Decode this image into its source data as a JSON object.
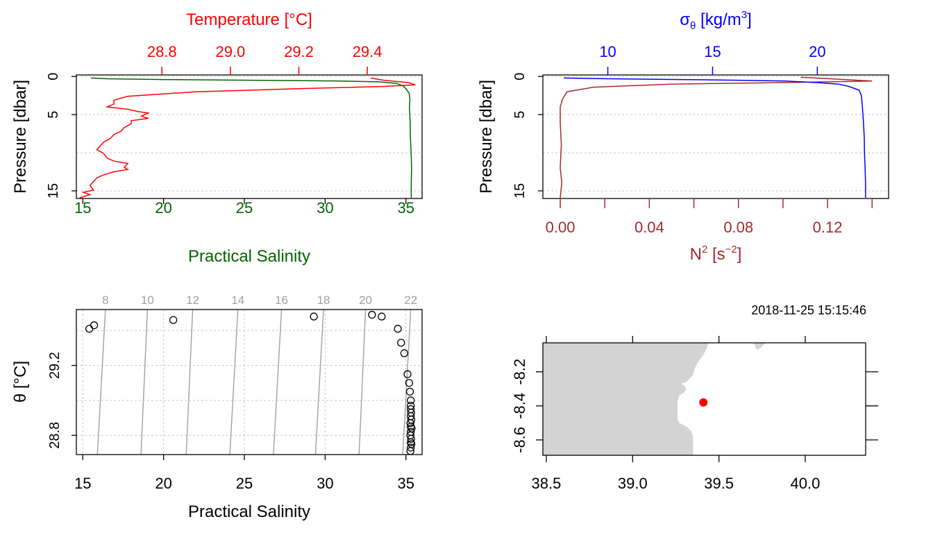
{
  "colors": {
    "temperature": "#ff0000",
    "salinity": "#006400",
    "sigma_theta": "#0000ff",
    "n2": "#a52a2a",
    "isopycnal": "#a0a0a0",
    "land": "#d3d3d3",
    "station": "#ff0000"
  },
  "chart_data": [
    {
      "id": "profile-ts",
      "type": "line",
      "ylabel": "Pressure [dbar]",
      "ylim": [
        16,
        -0.2
      ],
      "yticks": [
        0,
        5,
        15
      ],
      "y_grid": [
        0,
        5,
        10,
        15
      ],
      "bottom_axis": {
        "label": "Practical Salinity",
        "ticks": [
          "15",
          "20",
          "25",
          "30",
          "35"
        ],
        "tick_values": [
          15,
          20,
          25,
          30,
          35
        ],
        "lim": [
          14.6,
          36.0
        ]
      },
      "top_axis": {
        "label": "Temperature [°C]",
        "ticks": [
          "28.8",
          "29.0",
          "29.2",
          "29.4"
        ],
        "tick_values": [
          28.8,
          29.0,
          29.2,
          29.4
        ],
        "lim": [
          28.55,
          29.56
        ]
      },
      "series": [
        {
          "name": "Temperature",
          "axis": "top",
          "values": [
            [
              29.41,
              0.2
            ],
            [
              29.45,
              0.5
            ],
            [
              29.52,
              0.8
            ],
            [
              29.54,
              1.1
            ],
            [
              29.45,
              1.3
            ],
            [
              29.2,
              1.6
            ],
            [
              28.9,
              2.0
            ],
            [
              28.7,
              2.6
            ],
            [
              28.66,
              3.1
            ],
            [
              28.66,
              3.6
            ],
            [
              28.64,
              4.0
            ],
            [
              28.7,
              4.3
            ],
            [
              28.73,
              4.6
            ],
            [
              28.76,
              4.8
            ],
            [
              28.74,
              5.2
            ],
            [
              28.76,
              5.5
            ],
            [
              28.71,
              5.8
            ],
            [
              28.71,
              6.2
            ],
            [
              28.69,
              6.7
            ],
            [
              28.68,
              7.2
            ],
            [
              28.66,
              7.6
            ],
            [
              28.65,
              8.1
            ],
            [
              28.63,
              8.6
            ],
            [
              28.62,
              9.1
            ],
            [
              28.61,
              9.6
            ],
            [
              28.63,
              10.1
            ],
            [
              28.64,
              10.7
            ],
            [
              28.66,
              11.1
            ],
            [
              28.7,
              11.4
            ],
            [
              28.69,
              11.9
            ],
            [
              28.7,
              12.2
            ],
            [
              28.66,
              12.5
            ],
            [
              28.63,
              12.9
            ],
            [
              28.61,
              13.3
            ],
            [
              28.6,
              13.8
            ],
            [
              28.59,
              14.3
            ],
            [
              28.6,
              14.9
            ],
            [
              28.57,
              15.2
            ],
            [
              28.59,
              15.5
            ],
            [
              28.56,
              15.9
            ]
          ]
        },
        {
          "name": "Practical Salinity",
          "axis": "bottom",
          "values": [
            [
              15.5,
              0.2
            ],
            [
              16.5,
              0.3
            ],
            [
              20.0,
              0.4
            ],
            [
              26.0,
              0.5
            ],
            [
              31.0,
              0.6
            ],
            [
              33.3,
              0.7
            ],
            [
              34.4,
              0.9
            ],
            [
              34.8,
              1.2
            ],
            [
              35.0,
              1.6
            ],
            [
              35.2,
              2.2
            ],
            [
              35.25,
              3.0
            ],
            [
              35.22,
              4.0
            ],
            [
              35.26,
              6.0
            ],
            [
              35.28,
              8.0
            ],
            [
              35.32,
              10.0
            ],
            [
              35.35,
              12.0
            ],
            [
              35.33,
              14.0
            ],
            [
              35.33,
              15.9
            ]
          ]
        }
      ]
    },
    {
      "id": "profile-density",
      "type": "line",
      "ylabel": "Pressure [dbar]",
      "ylim": [
        16,
        -0.2
      ],
      "yticks": [
        0,
        5,
        15
      ],
      "y_grid": [
        0,
        5,
        10,
        15
      ],
      "top_axis": {
        "ticks": [
          "10",
          "15",
          "20"
        ],
        "tick_values": [
          10,
          15,
          20
        ],
        "lim": [
          6.9,
          23.4
        ]
      },
      "bottom_axis": {
        "ticks": [
          "0.00",
          "0.04",
          "0.08",
          "0.12"
        ],
        "tick_values": [
          0.0,
          0.02,
          0.04,
          0.06,
          0.08,
          0.1,
          0.12,
          0.14
        ],
        "label_values": [
          0.0,
          0.04,
          0.08,
          0.12
        ],
        "lim": [
          -0.0078,
          0.1474
        ]
      },
      "series": [
        {
          "name": "sigma-theta",
          "axis": "top",
          "values": [
            [
              7.9,
              0.2
            ],
            [
              10.0,
              0.3
            ],
            [
              13.5,
              0.4
            ],
            [
              16.5,
              0.5
            ],
            [
              18.5,
              0.6
            ],
            [
              20.0,
              0.8
            ],
            [
              21.0,
              1.0
            ],
            [
              21.5,
              1.3
            ],
            [
              22.0,
              1.8
            ],
            [
              22.1,
              2.5
            ],
            [
              22.15,
              4.0
            ],
            [
              22.2,
              6.0
            ],
            [
              22.24,
              8.0
            ],
            [
              22.25,
              10.0
            ],
            [
              22.28,
              12.0
            ],
            [
              22.3,
              14.0
            ],
            [
              22.3,
              15.9
            ]
          ]
        },
        {
          "name": "N2",
          "axis": "bottom",
          "values": [
            [
              0.108,
              0.1
            ],
            [
              0.14,
              0.6
            ],
            [
              0.1,
              0.8
            ],
            [
              0.05,
              1.0
            ],
            [
              0.015,
              1.4
            ],
            [
              0.003,
              2.0
            ],
            [
              0.001,
              3.0
            ],
            [
              0.0,
              4.0
            ],
            [
              0.0,
              6.0
            ],
            [
              0.0005,
              9.0
            ],
            [
              0.0,
              12.0
            ],
            [
              0.0007,
              14.0
            ],
            [
              0.0,
              15.9
            ]
          ]
        }
      ]
    },
    {
      "id": "ts-diagram",
      "type": "scatter",
      "xlabel": "Practical Salinity",
      "ylabel": "θ [°C]",
      "xlim": [
        14.6,
        36.0
      ],
      "ylim": [
        28.69,
        29.52
      ],
      "xticks": [
        "15",
        "20",
        "25",
        "30",
        "35"
      ],
      "xtick_values": [
        15,
        20,
        25,
        30,
        35
      ],
      "yticks": [
        "28.8",
        "29.2"
      ],
      "ytick_values": [
        28.8,
        29.2
      ],
      "y_grid": [
        28.8,
        29.0,
        29.2,
        29.4
      ],
      "isopycnals": [
        {
          "label": "8",
          "s_top": 16.4,
          "s_bottom": 15.9
        },
        {
          "label": "10",
          "s_top": 19.0,
          "s_bottom": 18.6
        },
        {
          "label": "12",
          "s_top": 21.8,
          "s_bottom": 21.4
        },
        {
          "label": "14",
          "s_top": 24.6,
          "s_bottom": 24.1
        },
        {
          "label": "16",
          "s_top": 27.3,
          "s_bottom": 26.8
        },
        {
          "label": "18",
          "s_top": 29.9,
          "s_bottom": 29.4
        },
        {
          "label": "20",
          "s_top": 32.5,
          "s_bottom": 32.1
        },
        {
          "label": "22",
          "s_top": 35.3,
          "s_bottom": 34.8
        }
      ],
      "points": [
        [
          15.4,
          29.41
        ],
        [
          15.7,
          29.43
        ],
        [
          20.6,
          29.46
        ],
        [
          29.3,
          29.48
        ],
        [
          32.9,
          29.49
        ],
        [
          33.5,
          29.48
        ],
        [
          34.5,
          29.41
        ],
        [
          34.7,
          29.33
        ],
        [
          34.9,
          29.27
        ],
        [
          35.1,
          29.15
        ],
        [
          35.2,
          29.1
        ],
        [
          35.25,
          29.05
        ],
        [
          35.3,
          29.0
        ],
        [
          35.3,
          28.97
        ],
        [
          35.3,
          28.95
        ],
        [
          35.32,
          28.93
        ],
        [
          35.3,
          28.91
        ],
        [
          35.33,
          28.89
        ],
        [
          35.28,
          28.87
        ],
        [
          35.3,
          28.85
        ],
        [
          35.35,
          28.84
        ],
        [
          35.3,
          28.82
        ],
        [
          35.28,
          28.8
        ],
        [
          35.32,
          28.78
        ],
        [
          35.3,
          28.76
        ],
        [
          35.34,
          28.75
        ],
        [
          35.3,
          28.73
        ],
        [
          35.28,
          28.71
        ]
      ]
    }
  ],
  "map": {
    "timestamp": "2018-11-25 15:15:46",
    "xticks": [
      "38.5",
      "39.0",
      "39.5",
      "40.0"
    ],
    "xtick_values": [
      38.5,
      39.0,
      39.5,
      40.0
    ],
    "yticks": [
      "-8.2",
      "-8.4",
      "-8.6"
    ],
    "ytick_values": [
      -8.2,
      -8.4,
      -8.6
    ],
    "xlim": [
      38.48,
      40.35
    ],
    "ylim": [
      -8.69,
      -8.03
    ],
    "station": {
      "lon": 39.41,
      "lat": -8.38
    },
    "coast": [
      [
        38.48,
        -8.03
      ],
      [
        39.44,
        -8.03
      ],
      [
        39.43,
        -8.06
      ],
      [
        39.41,
        -8.1
      ],
      [
        39.38,
        -8.14
      ],
      [
        39.36,
        -8.18
      ],
      [
        39.35,
        -8.22
      ],
      [
        39.33,
        -8.24
      ],
      [
        39.31,
        -8.26
      ],
      [
        39.28,
        -8.27
      ],
      [
        39.3,
        -8.28
      ],
      [
        39.31,
        -8.3
      ],
      [
        39.3,
        -8.32
      ],
      [
        39.27,
        -8.34
      ],
      [
        39.26,
        -8.38
      ],
      [
        39.26,
        -8.42
      ],
      [
        39.26,
        -8.48
      ],
      [
        39.27,
        -8.5
      ],
      [
        39.31,
        -8.52
      ],
      [
        39.34,
        -8.55
      ],
      [
        39.35,
        -8.58
      ],
      [
        39.35,
        -8.62
      ],
      [
        39.35,
        -8.69
      ],
      [
        38.48,
        -8.69
      ]
    ],
    "island": [
      [
        39.7,
        -8.03
      ],
      [
        39.77,
        -8.03
      ],
      [
        39.74,
        -8.06
      ],
      [
        39.72,
        -8.07
      ]
    ]
  },
  "labels": {
    "profile_ts": {
      "top_title": "Temperature [°C]",
      "bottom_title": "Practical Salinity",
      "y_title": "Pressure [dbar]"
    },
    "profile_density": {
      "y_title": "Pressure [dbar]"
    },
    "ts": {
      "x_title": "Practical Salinity",
      "y_title": "θ [°C]"
    }
  }
}
